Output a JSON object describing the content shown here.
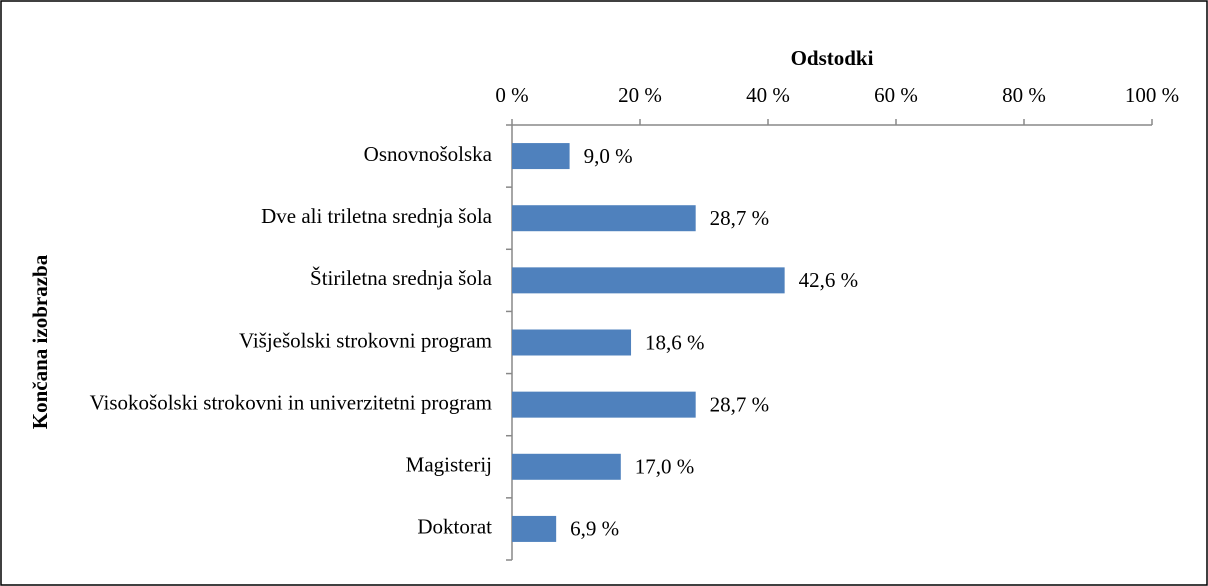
{
  "chart_data": {
    "type": "bar",
    "orientation": "horizontal",
    "x_label": "Odstodki",
    "y_label": "Končana izobrazba",
    "categories": [
      "Osnovnošolska",
      "Dve ali triletna srednja šola",
      "Štiriletna srednja šola",
      "Višješolski strokovni program",
      "Visokošolski strokovni in univerzitetni program",
      "Magisterij",
      "Doktorat"
    ],
    "values": [
      9.0,
      28.7,
      42.6,
      18.6,
      28.7,
      17.0,
      6.9
    ],
    "value_labels": [
      "9,0 %",
      "28,7 %",
      "42,6 %",
      "18,6 %",
      "28,7 %",
      "17,0 %",
      "6,9 %"
    ],
    "color": "#4f81bd",
    "xlim": [
      0,
      100
    ],
    "xticks": [
      {
        "value": 0,
        "label": "0 %"
      },
      {
        "value": 20,
        "label": "20 %"
      },
      {
        "value": 40,
        "label": "40 %"
      },
      {
        "value": 60,
        "label": "60 %"
      },
      {
        "value": 80,
        "label": "80 %"
      },
      {
        "value": 100,
        "label": "100 %"
      }
    ],
    "grid": false
  }
}
